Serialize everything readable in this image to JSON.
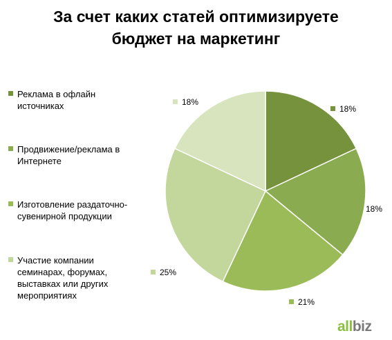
{
  "chart_data": {
    "type": "pie",
    "title_lines": [
      "За счет каких статей оптимизируете",
      "бюджет на маркетинг"
    ],
    "slices": [
      {
        "label": "Реклама в офлайн источниках",
        "value": 18,
        "display": "18%",
        "color": "#76923c"
      },
      {
        "label": "Продвижение/реклама в Интернете",
        "value": 18,
        "display": "18%",
        "color": "#8aab4f"
      },
      {
        "label": "Изготовление раздаточно-сувенирной продукции",
        "value": 21,
        "display": "21%",
        "color": "#9bbb59"
      },
      {
        "label": "Участие компании семинарах, форумах, выставках или других мероприятиях",
        "value": 25,
        "display": "25%",
        "color": "#c3d69b"
      },
      {
        "label": "",
        "value": 18,
        "display": "18%",
        "color": "#d7e4bd"
      }
    ],
    "legend": [
      {
        "lines": [
          "Реклама в офлайн",
          "источниках"
        ],
        "color": "#76923c"
      },
      {
        "lines": [
          "Продвижение/реклама в",
          "Интернете"
        ],
        "color": "#8aab4f"
      },
      {
        "lines": [
          "Изготовление раздаточно-",
          "сувенирной продукции"
        ],
        "color": "#9bbb59"
      },
      {
        "lines": [
          "Участие компании",
          "семинарах, форумах,",
          "выставках или других",
          "мероприятиях"
        ],
        "color": "#c3d69b"
      }
    ],
    "legend_placement": "left"
  },
  "logo": {
    "part1": "all",
    "part2": "biz"
  }
}
